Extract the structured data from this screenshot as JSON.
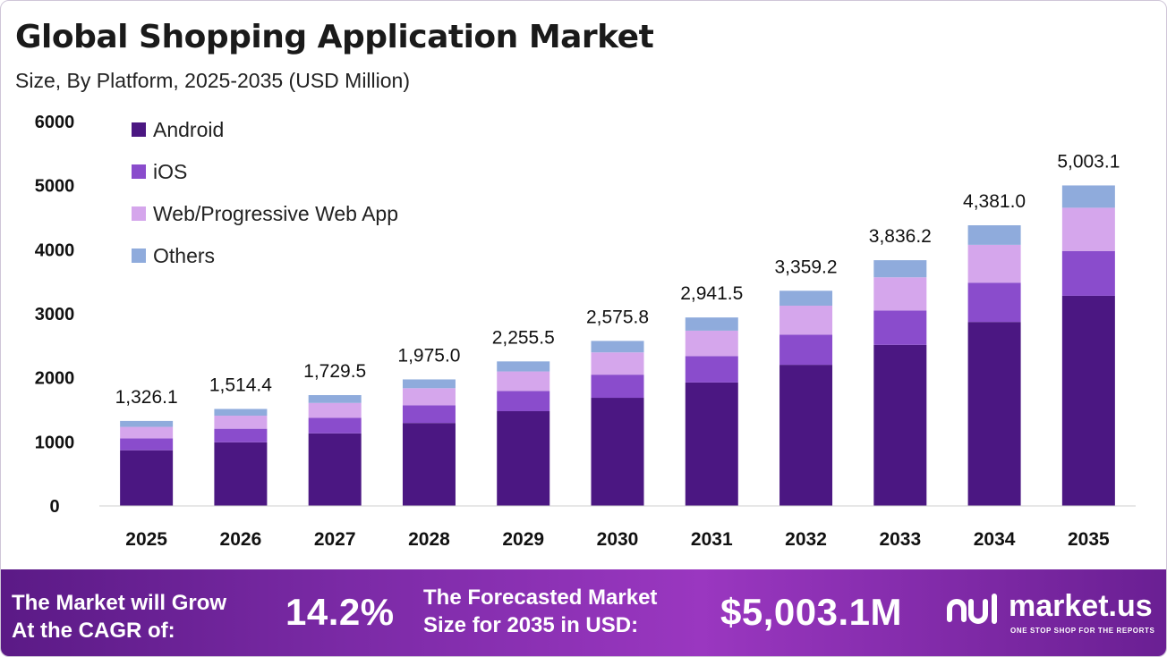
{
  "header": {
    "title": "Global Shopping Application Market",
    "subtitle": "Size, By Platform, 2025-2035 (USD Million)"
  },
  "chart_data": {
    "type": "bar",
    "stacked": true,
    "categories": [
      "2025",
      "2026",
      "2027",
      "2028",
      "2029",
      "2030",
      "2031",
      "2032",
      "2033",
      "2034",
      "2035"
    ],
    "series": [
      {
        "name": "Android",
        "color": "#4b1782",
        "values": [
          869,
          993,
          1133,
          1295,
          1479,
          1688,
          1927,
          2203,
          2514,
          2872,
          3280
        ]
      },
      {
        "name": "iOS",
        "color": "#8a4ccc",
        "values": [
          186,
          212,
          242,
          276,
          316,
          361,
          412,
          470,
          537,
          613,
          700
        ]
      },
      {
        "name": "Web/Progressive Web App",
        "color": "#d5a6ec",
        "values": [
          179,
          204,
          233,
          267,
          304,
          348,
          397,
          453,
          518,
          591,
          675
        ]
      },
      {
        "name": "Others",
        "color": "#8fabdc",
        "values": [
          93,
          105,
          122,
          137,
          157,
          179,
          206,
          233,
          267,
          305,
          348
        ]
      }
    ],
    "totals": [
      1326.1,
      1514.4,
      1729.5,
      1975.0,
      2255.5,
      2575.8,
      2941.5,
      3359.2,
      3836.2,
      4381.0,
      5003.1
    ],
    "total_labels": [
      "1,326.1",
      "1,514.4",
      "1,729.5",
      "1,975.0",
      "2,255.5",
      "2,575.8",
      "2,941.5",
      "3,359.2",
      "3,836.2",
      "4,381.0",
      "5,003.1"
    ],
    "yticks": [
      0,
      1000,
      2000,
      3000,
      4000,
      5000,
      6000
    ],
    "ylim": [
      0,
      6000
    ],
    "grid": false,
    "legend_position": "top-left"
  },
  "footer": {
    "cagr_label_line1": "The Market will Grow",
    "cagr_label_line2": "At the CAGR of:",
    "cagr_value": "14.2%",
    "forecast_label_line1": "The Forecasted Market",
    "forecast_label_line2": "Size for 2035 in USD:",
    "forecast_value": "$5,003.1M",
    "brand_name": "market.us",
    "brand_tagline": "ONE STOP SHOP FOR THE REPORTS"
  }
}
